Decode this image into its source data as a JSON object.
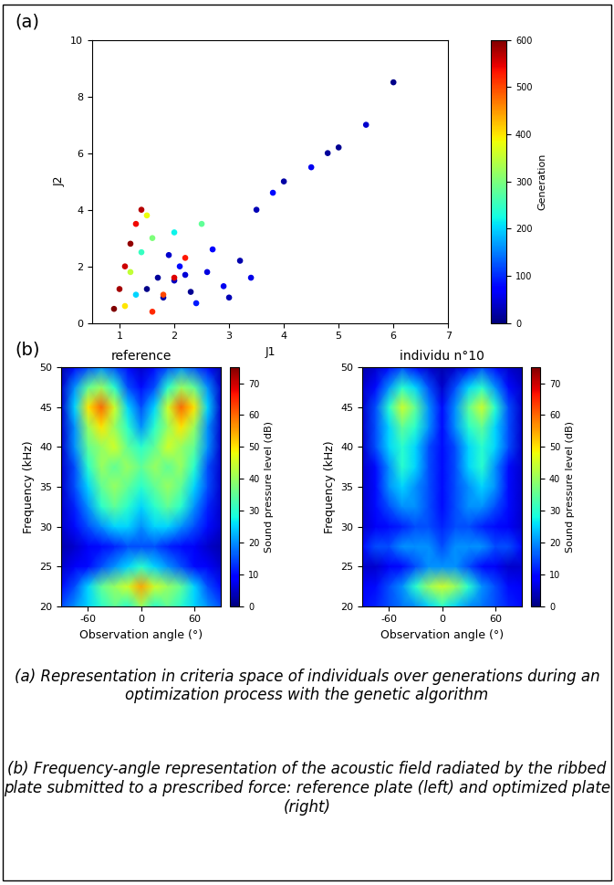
{
  "panel_labels": [
    "(a)",
    "(b)"
  ],
  "chart_data": [
    {
      "type": "scatter",
      "x_label": "J1",
      "y_label": "J2",
      "colorbar_label": "Generation",
      "x": [
        1.5,
        1.8,
        2.0,
        2.3,
        2.6,
        2.1,
        1.7,
        2.9,
        3.2,
        2.4,
        1.9,
        2.7,
        3.0,
        2.2,
        3.4,
        1.3,
        1.4,
        1.6,
        1.2,
        2.0,
        2.5,
        1.5,
        1.1,
        0.9,
        1.0,
        1.1,
        1.2,
        1.3,
        1.4,
        1.6,
        1.8,
        2.0,
        2.2,
        3.5,
        4.0,
        4.5,
        5.0,
        5.5,
        6.0,
        3.8,
        4.8
      ],
      "y": [
        1.2,
        0.9,
        1.5,
        1.1,
        1.8,
        2.0,
        1.6,
        1.3,
        2.2,
        0.7,
        2.4,
        2.6,
        0.9,
        1.7,
        1.6,
        1.0,
        2.5,
        3.0,
        1.8,
        3.2,
        3.5,
        3.8,
        0.6,
        0.5,
        1.2,
        2.0,
        2.8,
        3.5,
        4.0,
        0.4,
        1.0,
        1.6,
        2.3,
        4.0,
        5.0,
        5.5,
        6.2,
        7.0,
        8.5,
        4.6,
        6.0
      ],
      "generation": [
        5,
        20,
        35,
        10,
        50,
        80,
        15,
        60,
        25,
        90,
        40,
        70,
        30,
        45,
        55,
        200,
        250,
        300,
        350,
        220,
        280,
        380,
        400,
        600,
        580,
        560,
        590,
        540,
        570,
        520,
        500,
        550,
        530,
        30,
        20,
        60,
        10,
        40,
        5,
        80,
        15
      ],
      "xlim": [
        0.5,
        7
      ],
      "xticks": [
        1,
        2,
        3,
        4,
        5,
        6,
        7
      ],
      "ylim": [
        0,
        10
      ],
      "yticks": [
        0,
        2,
        4,
        6,
        8,
        10
      ],
      "colorbar_range": [
        0,
        600
      ],
      "colorbar_ticks": [
        0,
        100,
        200,
        300,
        400,
        500,
        600
      ]
    },
    {
      "type": "heatmap",
      "title": "reference",
      "x_label": "Observation angle (°)",
      "y_label": "Frequency (kHz)",
      "colorbar_label": "Sound pressure level (dB)",
      "x": [
        -90,
        -75,
        -60,
        -45,
        -30,
        -15,
        0,
        15,
        30,
        45,
        60,
        75,
        90
      ],
      "y": [
        20,
        22.5,
        25,
        27.5,
        30,
        32.5,
        35,
        37.5,
        40,
        42.5,
        45,
        47.5,
        50
      ],
      "cells": [
        [
          15,
          20,
          25,
          30,
          35,
          30,
          40,
          30,
          35,
          30,
          25,
          20,
          15
        ],
        [
          10,
          15,
          25,
          35,
          40,
          45,
          55,
          45,
          40,
          35,
          25,
          15,
          10
        ],
        [
          5,
          8,
          10,
          15,
          20,
          25,
          30,
          25,
          20,
          15,
          10,
          8,
          5
        ],
        [
          3,
          5,
          8,
          10,
          12,
          15,
          15,
          15,
          12,
          10,
          8,
          5,
          3
        ],
        [
          5,
          10,
          15,
          20,
          25,
          25,
          20,
          25,
          25,
          20,
          15,
          10,
          5
        ],
        [
          5,
          12,
          20,
          30,
          35,
          30,
          25,
          30,
          35,
          30,
          20,
          12,
          5
        ],
        [
          5,
          15,
          25,
          35,
          40,
          35,
          30,
          35,
          40,
          35,
          25,
          15,
          5
        ],
        [
          5,
          15,
          30,
          40,
          35,
          40,
          35,
          40,
          35,
          40,
          30,
          15,
          5
        ],
        [
          5,
          20,
          35,
          40,
          45,
          35,
          30,
          35,
          45,
          40,
          35,
          20,
          5
        ],
        [
          5,
          20,
          40,
          50,
          40,
          30,
          20,
          30,
          40,
          50,
          40,
          20,
          5
        ],
        [
          5,
          25,
          50,
          60,
          45,
          25,
          15,
          25,
          45,
          60,
          50,
          25,
          5
        ],
        [
          5,
          20,
          35,
          40,
          30,
          15,
          10,
          15,
          30,
          40,
          35,
          20,
          5
        ],
        [
          3,
          10,
          15,
          20,
          15,
          10,
          5,
          10,
          15,
          20,
          15,
          10,
          3
        ]
      ],
      "xlim": [
        -90,
        90
      ],
      "xticks": [
        -60,
        0,
        60
      ],
      "ylim": [
        20,
        50
      ],
      "yticks": [
        20,
        25,
        30,
        35,
        40,
        45,
        50
      ],
      "colorbar_range": [
        0,
        75
      ],
      "colorbar_ticks": [
        0,
        10,
        20,
        30,
        40,
        50,
        60,
        70
      ]
    },
    {
      "type": "heatmap",
      "title": "individu n°10",
      "x_label": "Observation angle (°)",
      "y_label": "Frequency (kHz)",
      "colorbar_label": "Sound pressure level (dB)",
      "x": [
        -90,
        -75,
        -60,
        -45,
        -30,
        -15,
        0,
        15,
        30,
        45,
        60,
        75,
        90
      ],
      "y": [
        20,
        22.5,
        25,
        27.5,
        30,
        32.5,
        35,
        37.5,
        40,
        42.5,
        45,
        47.5,
        50
      ],
      "cells": [
        [
          10,
          12,
          15,
          18,
          20,
          25,
          30,
          25,
          20,
          18,
          15,
          12,
          10
        ],
        [
          8,
          10,
          15,
          20,
          30,
          40,
          45,
          40,
          30,
          20,
          15,
          10,
          8
        ],
        [
          5,
          5,
          8,
          10,
          15,
          20,
          20,
          20,
          15,
          10,
          8,
          5,
          5
        ],
        [
          10,
          15,
          15,
          20,
          20,
          20,
          15,
          20,
          20,
          20,
          15,
          15,
          10
        ],
        [
          5,
          8,
          10,
          12,
          15,
          15,
          12,
          15,
          15,
          12,
          10,
          8,
          5
        ],
        [
          5,
          10,
          15,
          20,
          20,
          15,
          10,
          15,
          20,
          20,
          15,
          10,
          5
        ],
        [
          5,
          10,
          20,
          25,
          20,
          15,
          10,
          15,
          20,
          25,
          20,
          10,
          5
        ],
        [
          5,
          10,
          20,
          30,
          25,
          15,
          10,
          15,
          25,
          30,
          20,
          10,
          5
        ],
        [
          5,
          15,
          25,
          30,
          25,
          15,
          10,
          15,
          25,
          30,
          25,
          15,
          5
        ],
        [
          5,
          15,
          25,
          35,
          30,
          20,
          10,
          20,
          30,
          35,
          25,
          15,
          5
        ],
        [
          5,
          15,
          30,
          45,
          35,
          20,
          10,
          20,
          35,
          45,
          30,
          15,
          5
        ],
        [
          5,
          10,
          20,
          30,
          25,
          15,
          5,
          15,
          25,
          30,
          20,
          10,
          5
        ],
        [
          3,
          5,
          10,
          15,
          10,
          5,
          3,
          5,
          10,
          15,
          10,
          5,
          3
        ]
      ],
      "xlim": [
        -90,
        90
      ],
      "xticks": [
        -60,
        0,
        60
      ],
      "ylim": [
        20,
        50
      ],
      "yticks": [
        20,
        25,
        30,
        35,
        40,
        45,
        50
      ],
      "colorbar_range": [
        0,
        75
      ],
      "colorbar_ticks": [
        0,
        10,
        20,
        30,
        40,
        50,
        60,
        70
      ]
    }
  ],
  "caption": [
    "(a) Representation in criteria space of individuals over generations during an optimization process with the genetic algorithm",
    "(b) Frequency-angle representation of the acoustic field radiated by the ribbed plate submitted to a prescribed force: reference plate (left) and optimized plate (right)"
  ]
}
